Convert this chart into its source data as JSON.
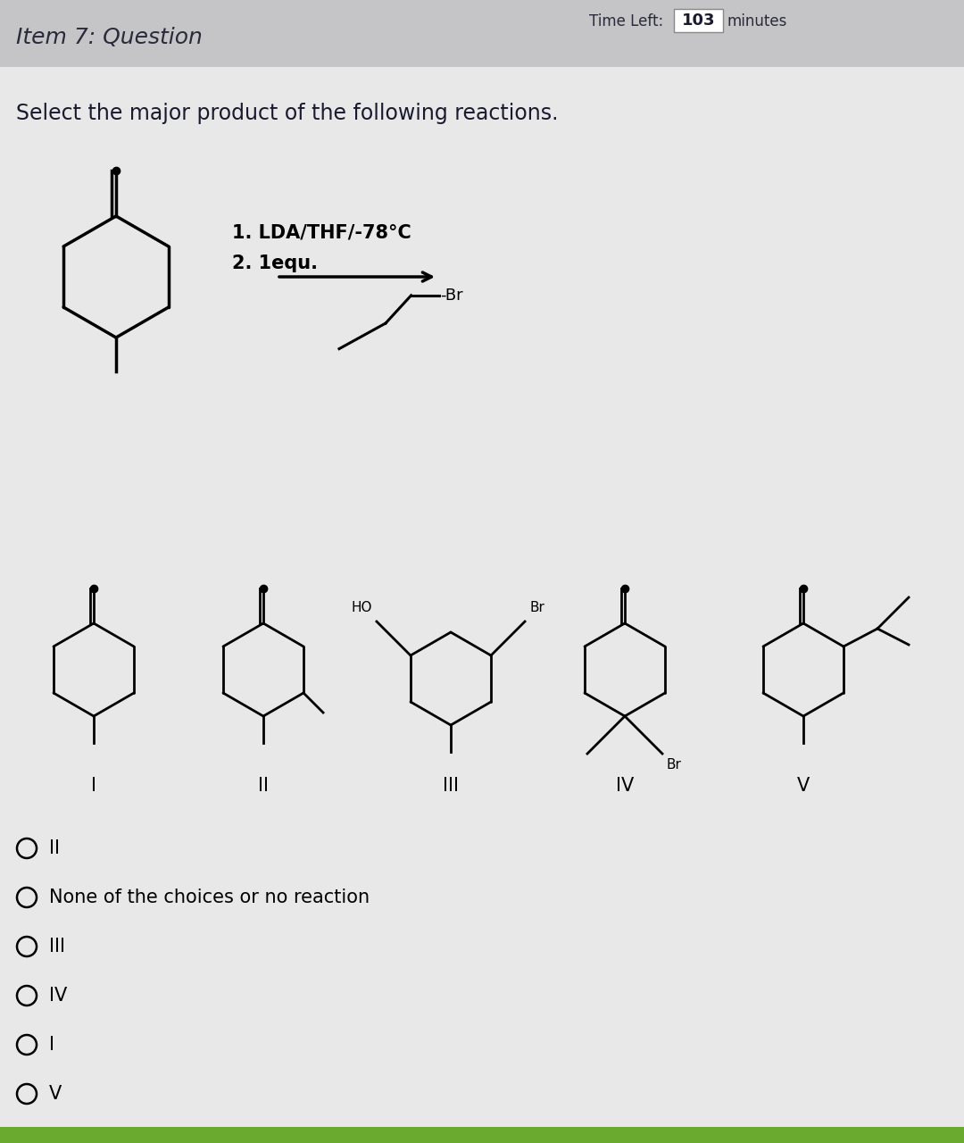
{
  "title_bar_text": "Item 7: Question",
  "time_text": "Time Left:",
  "time_value": "103",
  "time_unit": "minutes",
  "question_text": "Select the major product of the following reactions.",
  "reaction_step1": "1. LDA/THF/-78°C",
  "reaction_step2": "2. 1equ.",
  "choice_labels": [
    "I",
    "II",
    "III",
    "IV",
    "V"
  ],
  "answer_options": [
    "II",
    "None of the choices or no reaction",
    "III",
    "IV",
    "I",
    "V"
  ],
  "header_color": "#c5c5c8",
  "white_area_color": "#e8e8e8",
  "text_color": "#1a1a2e",
  "title_fontsize": 17,
  "question_fontsize": 16,
  "choice_fontsize": 15
}
